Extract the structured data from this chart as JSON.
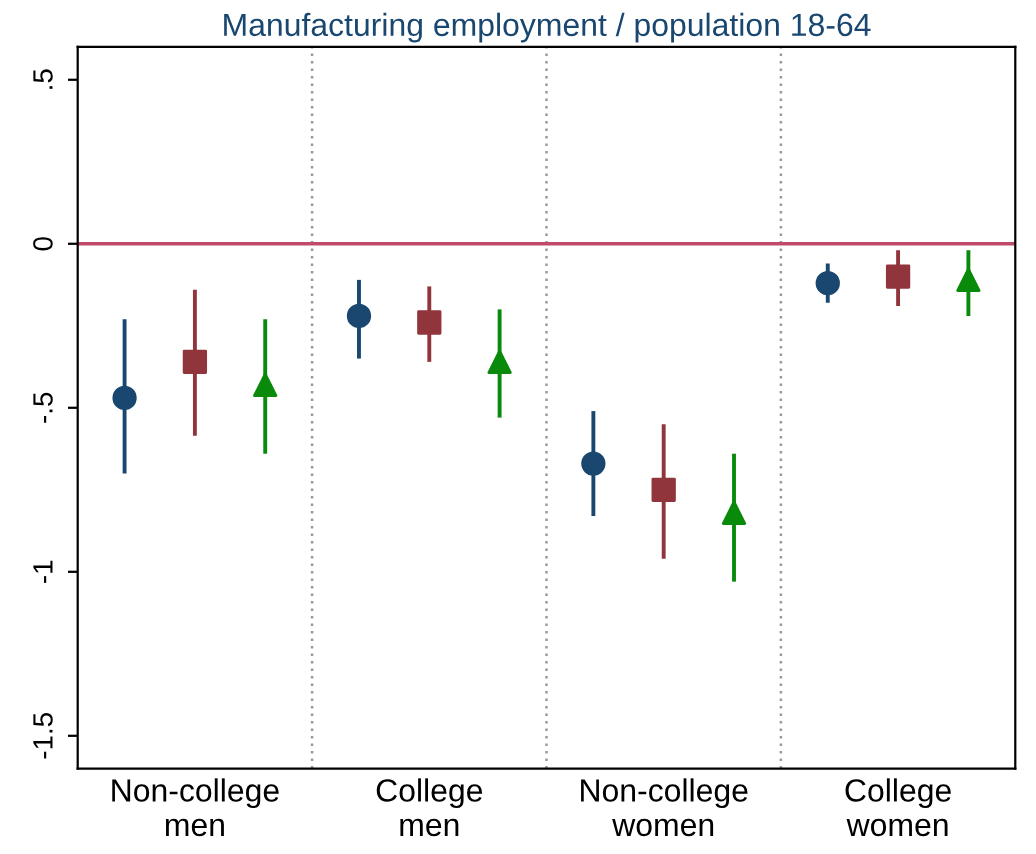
{
  "chart_data": {
    "type": "scatter",
    "title": "Manufacturing employment / population 18-64",
    "categories": [
      "Non-college\nmen",
      "College\nmen",
      "Non-college\nwomen",
      "College\nwomen"
    ],
    "series": [
      {
        "color": "#1a476f",
        "marker": "circle",
        "values": [
          -0.47,
          -0.22,
          -0.67,
          -0.12
        ],
        "errors": [
          [
            -0.7,
            -0.23
          ],
          [
            -0.35,
            -0.11
          ],
          [
            -0.83,
            -0.51
          ],
          [
            -0.18,
            -0.06
          ]
        ]
      },
      {
        "color": "#90353b",
        "marker": "square",
        "values": [
          -0.36,
          -0.24,
          -0.75,
          -0.1
        ],
        "errors": [
          [
            -0.585,
            -0.14
          ],
          [
            -0.36,
            -0.13
          ],
          [
            -0.96,
            -0.55
          ],
          [
            -0.19,
            -0.02
          ]
        ]
      },
      {
        "color": "#0a8a0a",
        "marker": "triangle",
        "values": [
          -0.43,
          -0.36,
          -0.82,
          -0.11
        ],
        "errors": [
          [
            -0.64,
            -0.23
          ],
          [
            -0.53,
            -0.2
          ],
          [
            -1.03,
            -0.64
          ],
          [
            -0.22,
            -0.02
          ]
        ]
      }
    ],
    "ylim": [
      -1.6,
      0.6
    ],
    "yticks": [
      {
        "value": 0.5,
        "label": ".5"
      },
      0,
      {
        "value": -0.5,
        "label": "-.5"
      },
      -1,
      {
        "value": -1.5,
        "label": "-1.5"
      }
    ],
    "ref_lines": [
      {
        "axis": "y",
        "value": 0,
        "color": "#c04a6a"
      }
    ],
    "grid": "x"
  }
}
